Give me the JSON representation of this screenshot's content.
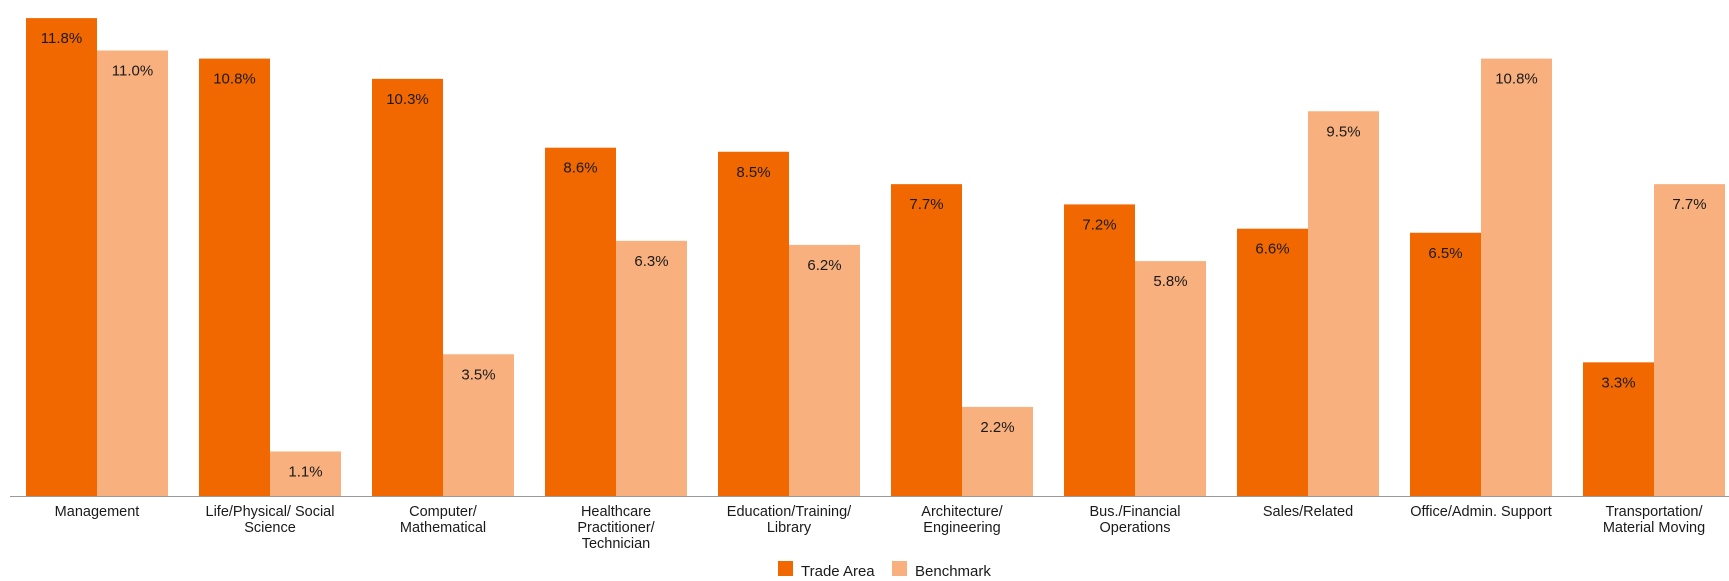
{
  "chart_data": {
    "type": "bar",
    "title": "",
    "xlabel": "",
    "ylabel": "",
    "ylim": [
      0,
      12
    ],
    "grid": false,
    "legend_position": "bottom-center",
    "categories": [
      [
        "Management"
      ],
      [
        "Life/Physical/ Social",
        "Science"
      ],
      [
        "Computer/",
        "Mathematical"
      ],
      [
        "Healthcare",
        "Practitioner/",
        "Technician"
      ],
      [
        "Education/Training/",
        "Library"
      ],
      [
        "Architecture/",
        "Engineering"
      ],
      [
        "Bus./Financial",
        "Operations"
      ],
      [
        "Sales/Related"
      ],
      [
        "Office/Admin. Support"
      ],
      [
        "Transportation/",
        "Material Moving"
      ]
    ],
    "series": [
      {
        "name": "Trade Area",
        "color": "#F26800",
        "values": [
          11.8,
          10.8,
          10.3,
          8.6,
          8.5,
          7.7,
          7.2,
          6.6,
          6.5,
          3.3
        ],
        "labels": [
          "11.8%",
          "10.8%",
          "10.3%",
          "8.6%",
          "8.5%",
          "7.7%",
          "7.2%",
          "6.6%",
          "6.5%",
          "3.3%"
        ]
      },
      {
        "name": "Benchmark",
        "color": "#F8B07E",
        "values": [
          11.0,
          1.1,
          3.5,
          6.3,
          6.2,
          2.2,
          5.8,
          9.5,
          10.8,
          7.7
        ],
        "labels": [
          "11.0%",
          "1.1%",
          "3.5%",
          "6.3%",
          "6.2%",
          "2.2%",
          "5.8%",
          "9.5%",
          "10.8%",
          "7.7%"
        ]
      }
    ]
  }
}
